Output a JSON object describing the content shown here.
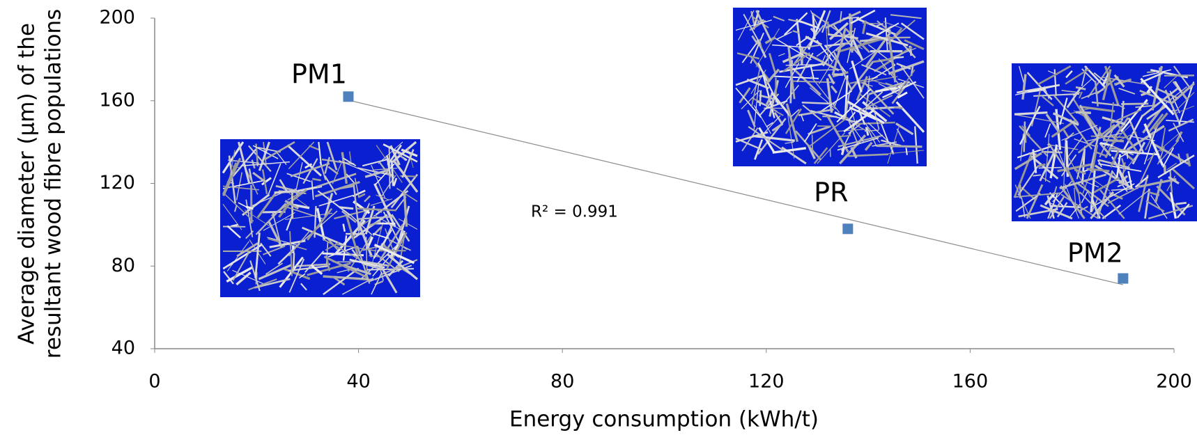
{
  "chart_data": {
    "type": "scatter",
    "x_label": "Energy consumption (kWh/t)",
    "y_label": [
      "Average diameter (µm) of the",
      "resultant wood fibre populations"
    ],
    "x": [
      38,
      136,
      190
    ],
    "values": [
      162,
      98,
      74
    ],
    "point_labels": [
      "PM1",
      "PR",
      "PM2"
    ],
    "color": "#4f81bd",
    "trendline": true,
    "annotation": "R² = 0.991",
    "xlim": [
      0,
      200
    ],
    "xticks": [
      0,
      40,
      80,
      120,
      160,
      200
    ],
    "ylim": [
      40,
      200
    ],
    "yticks": [
      40,
      80,
      120,
      160,
      200
    ]
  }
}
